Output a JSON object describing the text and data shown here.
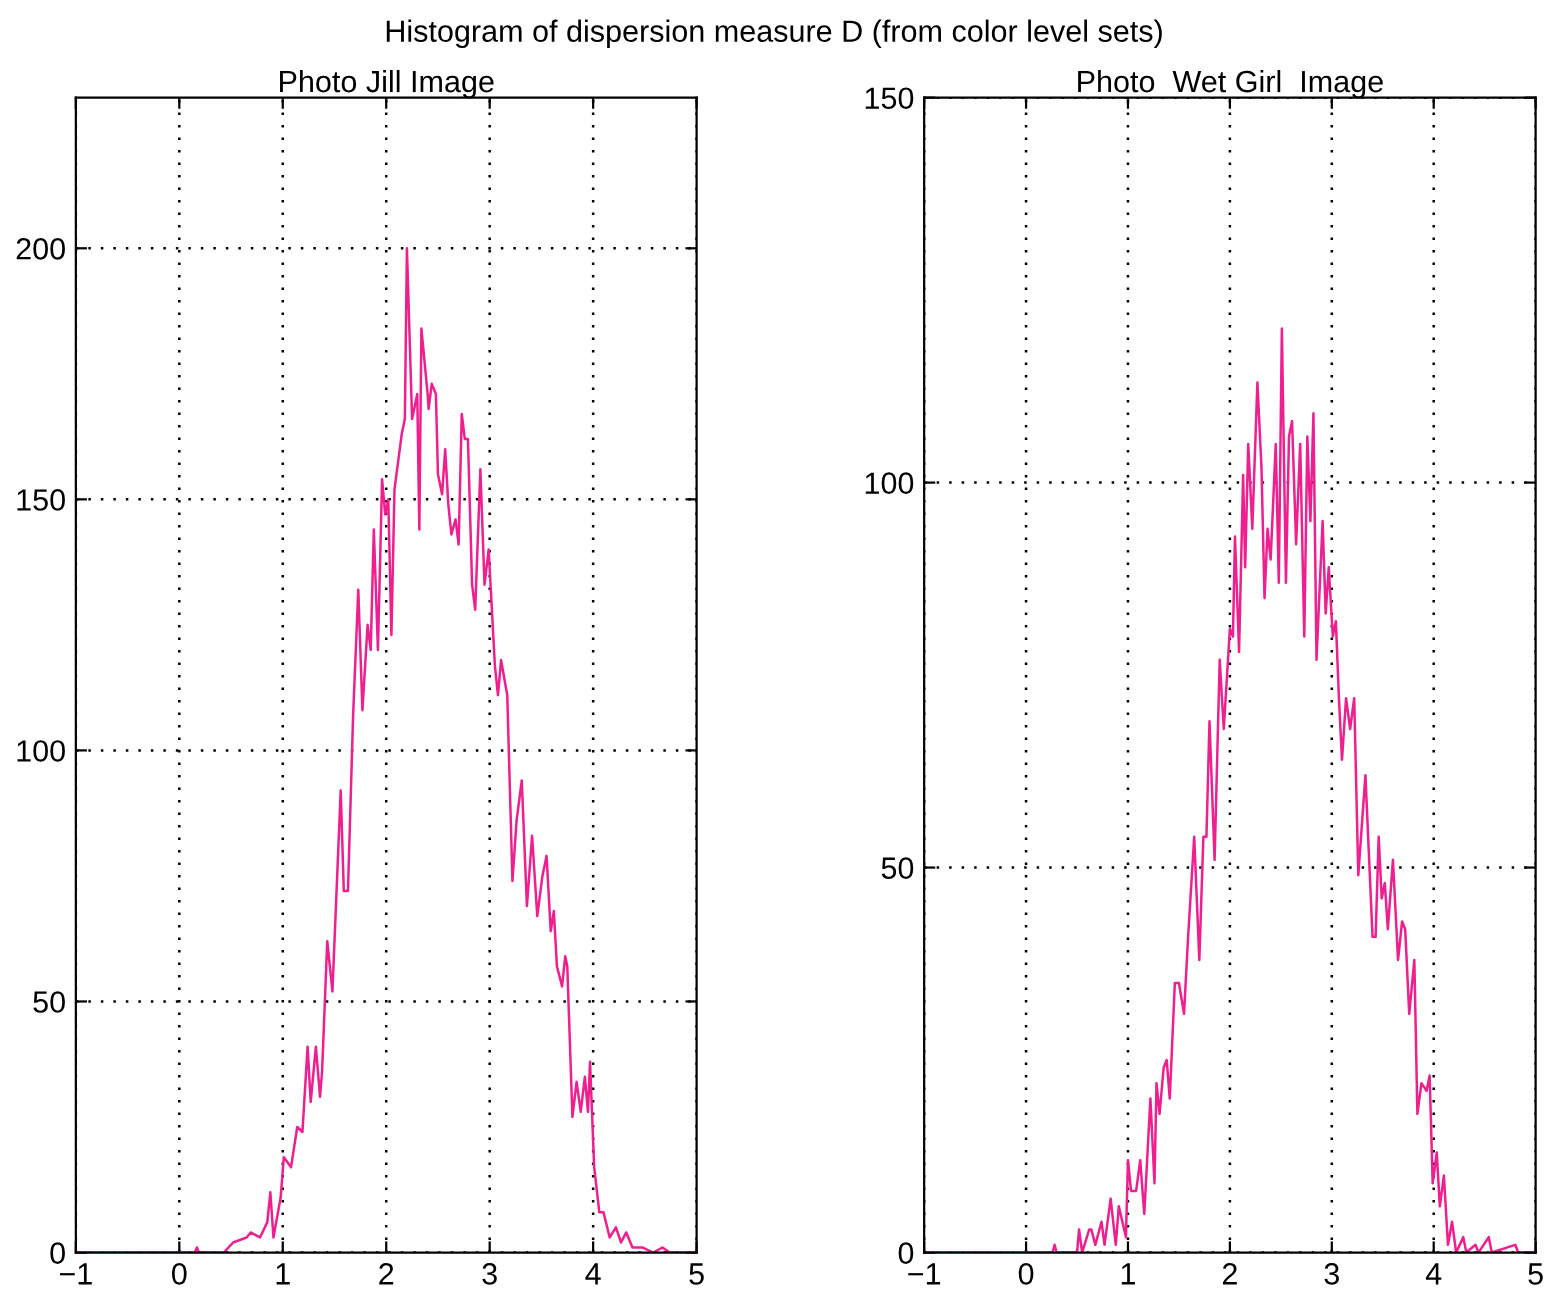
{
  "chart_data": [
    {
      "type": "line",
      "title": "Photo Jill Image",
      "xlim": [
        -1,
        5
      ],
      "ylim": [
        0,
        230
      ],
      "xticks": [
        -1,
        0,
        1,
        2,
        3,
        4,
        5
      ],
      "yticks": [
        0,
        50,
        100,
        150,
        200
      ],
      "grid": true,
      "line_style": "solid",
      "marker": "none",
      "annotations": [
        "Histogram of dispersion measure D (from color level sets)"
      ],
      "series": [
        {
          "color": "#ee1f8f",
          "x": [
            -1,
            0.15,
            0.17,
            0.19,
            0.43,
            0.52,
            0.65,
            0.69,
            0.78,
            0.85,
            0.88,
            0.91,
            0.98,
            1.01,
            1.08,
            1.14,
            1.19,
            1.24,
            1.27,
            1.32,
            1.36,
            1.38,
            1.43,
            1.48,
            1.56,
            1.59,
            1.63,
            1.68,
            1.73,
            1.77,
            1.82,
            1.85,
            1.88,
            1.92,
            1.96,
            1.99,
            2.02,
            2.05,
            2.08,
            2.15,
            2.18,
            2.2,
            2.25,
            2.3,
            2.32,
            2.34,
            2.4,
            2.41,
            2.44,
            2.48,
            2.5,
            2.54,
            2.57,
            2.6,
            2.63,
            2.67,
            2.7,
            2.73,
            2.76,
            2.79,
            2.83,
            2.86,
            2.91,
            2.95,
            2.99,
            3.05,
            3.08,
            3.11,
            3.17,
            3.22,
            3.26,
            3.31,
            3.36,
            3.41,
            3.46,
            3.51,
            3.55,
            3.59,
            3.62,
            3.65,
            3.7,
            3.73,
            3.75,
            3.8,
            3.84,
            3.88,
            3.92,
            3.95,
            3.97,
            4.01,
            4.06,
            4.1,
            4.16,
            4.22,
            4.27,
            4.32,
            4.38,
            4.48,
            4.58,
            4.67,
            4.74,
            5
          ],
          "values": [
            0,
            0,
            1,
            0,
            0,
            2,
            3,
            4,
            3,
            6,
            12,
            3,
            11,
            19,
            17,
            25,
            24,
            41,
            30,
            41,
            31,
            36,
            62,
            52,
            92,
            72,
            72,
            107,
            132,
            108,
            125,
            120,
            144,
            120,
            154,
            147,
            150,
            123,
            152,
            163,
            166,
            200,
            166,
            171,
            144,
            184,
            171,
            168,
            173,
            171,
            155,
            151,
            160,
            149,
            143,
            146,
            141,
            167,
            162,
            162,
            133,
            128,
            156,
            133,
            140,
            117,
            111,
            118,
            111,
            74,
            86,
            94,
            69,
            83,
            67,
            75,
            79,
            64,
            68,
            57,
            53,
            59,
            57,
            27,
            34,
            28,
            35,
            28,
            38,
            17,
            8,
            8,
            3,
            5,
            2,
            4,
            1,
            1,
            0,
            1,
            0,
            0
          ]
        }
      ]
    },
    {
      "type": "line",
      "title": "Photo  Wet Girl  Image",
      "xlim": [
        -1,
        5
      ],
      "ylim": [
        0,
        150
      ],
      "xticks": [
        -1,
        0,
        1,
        2,
        3,
        4,
        5
      ],
      "yticks": [
        0,
        50,
        100,
        150
      ],
      "grid": true,
      "line_style": "solid",
      "marker": "none",
      "series": [
        {
          "color": "#ee1f8f",
          "x": [
            -1,
            0.26,
            0.28,
            0.3,
            0.5,
            0.52,
            0.55,
            0.62,
            0.64,
            0.68,
            0.74,
            0.77,
            0.83,
            0.88,
            0.91,
            0.98,
            1.0,
            1.03,
            1.08,
            1.12,
            1.16,
            1.22,
            1.26,
            1.28,
            1.31,
            1.35,
            1.38,
            1.41,
            1.46,
            1.5,
            1.55,
            1.59,
            1.65,
            1.7,
            1.74,
            1.77,
            1.8,
            1.85,
            1.9,
            1.94,
            2.0,
            2.03,
            2.05,
            2.09,
            2.13,
            2.15,
            2.18,
            2.22,
            2.27,
            2.31,
            2.34,
            2.37,
            2.4,
            2.45,
            2.48,
            2.51,
            2.55,
            2.58,
            2.61,
            2.65,
            2.69,
            2.73,
            2.76,
            2.79,
            2.82,
            2.85,
            2.91,
            2.94,
            2.97,
            3.01,
            3.04,
            3.07,
            3.1,
            3.14,
            3.18,
            3.22,
            3.26,
            3.33,
            3.4,
            3.43,
            3.46,
            3.49,
            3.52,
            3.55,
            3.6,
            3.65,
            3.69,
            3.72,
            3.76,
            3.81,
            3.84,
            3.88,
            3.93,
            3.96,
            3.99,
            4.03,
            4.06,
            4.1,
            4.14,
            4.18,
            4.22,
            4.29,
            4.32,
            4.41,
            4.44,
            4.54,
            4.57,
            4.8,
            4.83,
            5
          ],
          "values": [
            0,
            0,
            1,
            0,
            0,
            3,
            0,
            3,
            3,
            1,
            4,
            1,
            7,
            1,
            6,
            2,
            12,
            8,
            8,
            12,
            5,
            20,
            9,
            22,
            18,
            24,
            25,
            20,
            35,
            35,
            31,
            41,
            54,
            38,
            54,
            54,
            69,
            51,
            77,
            68,
            81,
            80,
            93,
            78,
            101,
            89,
            105,
            94,
            113,
            102,
            85,
            94,
            90,
            105,
            87,
            120,
            87,
            106,
            108,
            92,
            105,
            80,
            106,
            95,
            109,
            77,
            95,
            83,
            89,
            80,
            82,
            72,
            64,
            72,
            68,
            72,
            49,
            62,
            41,
            41,
            54,
            46,
            48,
            42,
            51,
            38,
            43,
            42,
            31,
            38,
            18,
            22,
            21,
            23,
            9,
            13,
            6,
            10,
            1,
            4,
            0,
            2,
            0,
            1,
            0,
            2,
            0,
            1,
            0,
            0
          ]
        }
      ]
    }
  ]
}
